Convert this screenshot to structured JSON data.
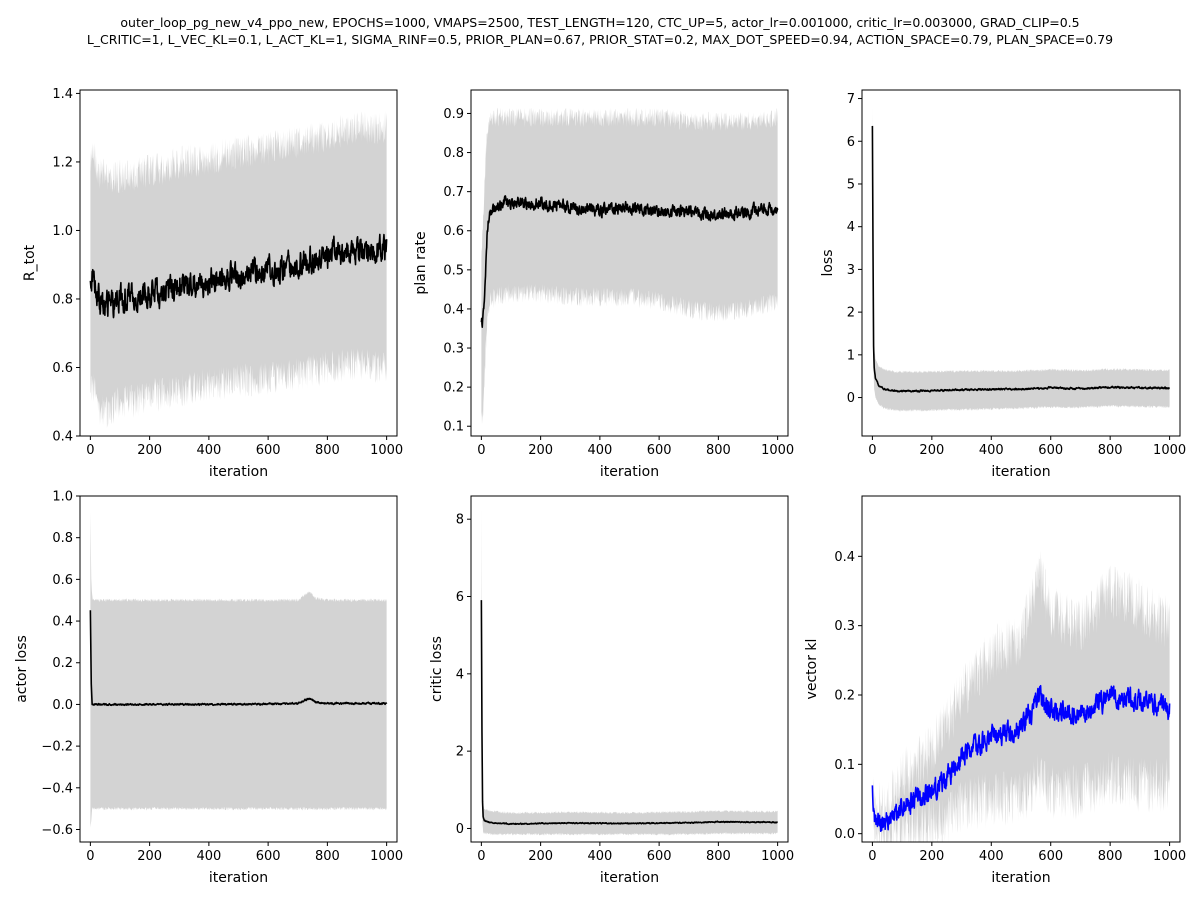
{
  "title_lines": [
    "outer_loop_pg_new_v4_ppo_new, EPOCHS=1000, VMAPS=2500, TEST_LENGTH=120, CTC_UP=5, actor_lr=0.001000, critic_lr=0.003000, GRAD_CLIP=0.5",
    "L_CRITIC=1, L_VEC_KL=0.1, L_ACT_KL=1, SIGMA_RINF=0.5, PRIOR_PLAN=0.67, PRIOR_STAT=0.2, MAX_DOT_SPEED=0.94, ACTION_SPACE=0.79, PLAN_SPACE=0.79"
  ],
  "colors": {
    "band": "#d3d3d3",
    "mean_default": "#000000",
    "mean_vector_kl": "#0000ff"
  },
  "chart_data": [
    {
      "type": "line",
      "xlabel": "iteration",
      "ylabel": "R_tot",
      "xlim": [
        -35,
        1035
      ],
      "ylim": [
        0.4,
        1.41
      ],
      "xticks": [
        0,
        200,
        400,
        600,
        800,
        1000
      ],
      "yticks": [
        0.4,
        0.6,
        0.8,
        1.0,
        1.2,
        1.4
      ],
      "ytick_labels": [
        "0.4",
        "0.6",
        "0.8",
        "1.0",
        "1.2",
        "1.4"
      ],
      "series": [
        {
          "x": [
            0,
            10,
            30,
            60,
            100,
            150,
            200,
            250,
            300,
            400,
            500,
            600,
            700,
            800,
            900,
            1000
          ],
          "mean": [
            0.84,
            0.88,
            0.79,
            0.78,
            0.8,
            0.8,
            0.82,
            0.82,
            0.84,
            0.85,
            0.87,
            0.88,
            0.9,
            0.93,
            0.94,
            0.95
          ],
          "upper": [
            1.2,
            1.22,
            1.17,
            1.15,
            1.16,
            1.16,
            1.18,
            1.18,
            1.2,
            1.21,
            1.23,
            1.24,
            1.26,
            1.28,
            1.3,
            1.3
          ],
          "lower": [
            0.55,
            0.54,
            0.48,
            0.47,
            0.5,
            0.5,
            0.52,
            0.52,
            0.53,
            0.55,
            0.56,
            0.57,
            0.58,
            0.6,
            0.61,
            0.6
          ],
          "noise": 0.03,
          "band_noise": 0.05
        }
      ]
    },
    {
      "type": "line",
      "xlabel": "iteration",
      "ylabel": "plan rate",
      "xlim": [
        -35,
        1035
      ],
      "ylim": [
        0.075,
        0.96
      ],
      "xticks": [
        0,
        200,
        400,
        600,
        800,
        1000
      ],
      "yticks": [
        0.1,
        0.2,
        0.3,
        0.4,
        0.5,
        0.6,
        0.7,
        0.8,
        0.9
      ],
      "ytick_labels": [
        "0.1",
        "0.2",
        "0.3",
        "0.4",
        "0.5",
        "0.6",
        "0.7",
        "0.8",
        "0.9"
      ],
      "series": [
        {
          "x": [
            0,
            5,
            10,
            15,
            20,
            30,
            50,
            80,
            100,
            200,
            300,
            400,
            500,
            600,
            700,
            800,
            900,
            1000
          ],
          "mean": [
            0.36,
            0.37,
            0.42,
            0.5,
            0.6,
            0.65,
            0.66,
            0.67,
            0.67,
            0.67,
            0.66,
            0.65,
            0.66,
            0.65,
            0.65,
            0.64,
            0.65,
            0.66
          ],
          "upper": [
            0.55,
            0.6,
            0.7,
            0.8,
            0.85,
            0.88,
            0.89,
            0.89,
            0.89,
            0.89,
            0.89,
            0.89,
            0.89,
            0.89,
            0.88,
            0.88,
            0.88,
            0.89
          ],
          "lower": [
            0.12,
            0.12,
            0.2,
            0.3,
            0.38,
            0.42,
            0.43,
            0.44,
            0.44,
            0.44,
            0.43,
            0.43,
            0.43,
            0.42,
            0.4,
            0.39,
            0.4,
            0.42
          ],
          "noise": 0.012,
          "band_noise": 0.025
        }
      ]
    },
    {
      "type": "line",
      "xlabel": "iteration",
      "ylabel": "loss",
      "xlim": [
        -35,
        1035
      ],
      "ylim": [
        -0.9,
        7.2
      ],
      "xticks": [
        0,
        200,
        400,
        600,
        800,
        1000
      ],
      "yticks": [
        0,
        1,
        2,
        3,
        4,
        5,
        6,
        7
      ],
      "ytick_labels": [
        "0",
        "1",
        "2",
        "3",
        "4",
        "5",
        "6",
        "7"
      ],
      "series": [
        {
          "x": [
            0,
            2,
            4,
            6,
            10,
            20,
            40,
            80,
            150,
            300,
            500,
            600,
            700,
            800,
            1000
          ],
          "mean": [
            6.35,
            3.5,
            1.2,
            0.7,
            0.45,
            0.3,
            0.2,
            0.15,
            0.15,
            0.18,
            0.2,
            0.23,
            0.21,
            0.24,
            0.22
          ],
          "upper": [
            6.8,
            4.0,
            1.8,
            1.2,
            0.9,
            0.75,
            0.65,
            0.6,
            0.6,
            0.62,
            0.62,
            0.65,
            0.63,
            0.66,
            0.64
          ],
          "lower": [
            5.9,
            3.0,
            0.6,
            0.2,
            0.0,
            -0.15,
            -0.25,
            -0.3,
            -0.3,
            -0.28,
            -0.25,
            -0.22,
            -0.23,
            -0.2,
            -0.22
          ],
          "noise": 0.015,
          "band_noise": 0.03
        }
      ]
    },
    {
      "type": "line",
      "xlabel": "iteration",
      "ylabel": "actor loss",
      "xlim": [
        -35,
        1035
      ],
      "ylim": [
        -0.66,
        1.0
      ],
      "xticks": [
        0,
        200,
        400,
        600,
        800,
        1000
      ],
      "yticks": [
        -0.6,
        -0.4,
        -0.2,
        0.0,
        0.2,
        0.4,
        0.6,
        0.8,
        1.0
      ],
      "ytick_labels": [
        "−0.6",
        "−0.4",
        "−0.2",
        "0.0",
        "0.2",
        "0.4",
        "0.6",
        "0.8",
        "1.0"
      ],
      "series": [
        {
          "x": [
            0,
            3,
            6,
            10,
            50,
            200,
            500,
            700,
            740,
            760,
            800,
            1000
          ],
          "mean": [
            0.45,
            0.1,
            0.0,
            0.0,
            0.0,
            0.0,
            0.0,
            0.005,
            0.03,
            0.01,
            0.005,
            0.005
          ],
          "upper": [
            0.92,
            0.6,
            0.52,
            0.5,
            0.5,
            0.5,
            0.5,
            0.5,
            0.54,
            0.51,
            0.5,
            0.5
          ],
          "lower": [
            -0.6,
            -0.55,
            -0.5,
            -0.5,
            -0.5,
            -0.5,
            -0.5,
            -0.5,
            -0.5,
            -0.5,
            -0.5,
            -0.5
          ],
          "noise": 0.003,
          "band_noise": 0.008
        }
      ]
    },
    {
      "type": "line",
      "xlabel": "iteration",
      "ylabel": "critic loss",
      "xlim": [
        -35,
        1035
      ],
      "ylim": [
        -0.35,
        8.6
      ],
      "xticks": [
        0,
        200,
        400,
        600,
        800,
        1000
      ],
      "yticks": [
        0,
        2,
        4,
        6,
        8
      ],
      "ytick_labels": [
        "0",
        "2",
        "4",
        "6",
        "8"
      ],
      "series": [
        {
          "x": [
            0,
            2,
            4,
            6,
            10,
            30,
            100,
            300,
            500,
            700,
            800,
            1000
          ],
          "mean": [
            5.9,
            2.5,
            0.7,
            0.3,
            0.2,
            0.15,
            0.12,
            0.14,
            0.13,
            0.15,
            0.17,
            0.16
          ],
          "upper": [
            8.3,
            4.0,
            1.5,
            0.6,
            0.5,
            0.45,
            0.4,
            0.42,
            0.4,
            0.43,
            0.45,
            0.43
          ],
          "lower": [
            3.5,
            1.0,
            0.1,
            -0.1,
            -0.12,
            -0.15,
            -0.15,
            -0.15,
            -0.15,
            -0.15,
            -0.13,
            -0.13
          ],
          "noise": 0.01,
          "band_noise": 0.03
        }
      ]
    },
    {
      "type": "line",
      "xlabel": "iteration",
      "ylabel": "vector kl",
      "xlim": [
        -35,
        1035
      ],
      "ylim": [
        -0.012,
        0.487
      ],
      "xticks": [
        0,
        200,
        400,
        600,
        800,
        1000
      ],
      "yticks": [
        0.0,
        0.1,
        0.2,
        0.3,
        0.4
      ],
      "ytick_labels": [
        "0.0",
        "0.1",
        "0.2",
        "0.3",
        "0.4"
      ],
      "series": [
        {
          "x": [
            0,
            5,
            20,
            50,
            80,
            100,
            120,
            150,
            200,
            250,
            300,
            400,
            500,
            560,
            600,
            700,
            800,
            900,
            1000
          ],
          "mean": [
            0.06,
            0.025,
            0.018,
            0.02,
            0.03,
            0.04,
            0.045,
            0.05,
            0.06,
            0.08,
            0.11,
            0.14,
            0.15,
            0.2,
            0.18,
            0.17,
            0.2,
            0.19,
            0.18
          ],
          "upper": [
            0.08,
            0.045,
            0.035,
            0.04,
            0.06,
            0.08,
            0.09,
            0.1,
            0.12,
            0.16,
            0.2,
            0.26,
            0.28,
            0.38,
            0.32,
            0.3,
            0.35,
            0.33,
            0.3
          ],
          "lower": [
            0.04,
            0.01,
            0.005,
            0.005,
            0.005,
            0.005,
            0.01,
            0.01,
            0.01,
            0.02,
            0.04,
            0.05,
            0.05,
            0.08,
            0.06,
            0.06,
            0.08,
            0.07,
            0.07
          ],
          "noise": 0.012,
          "band_noise": 0.04
        }
      ]
    }
  ]
}
